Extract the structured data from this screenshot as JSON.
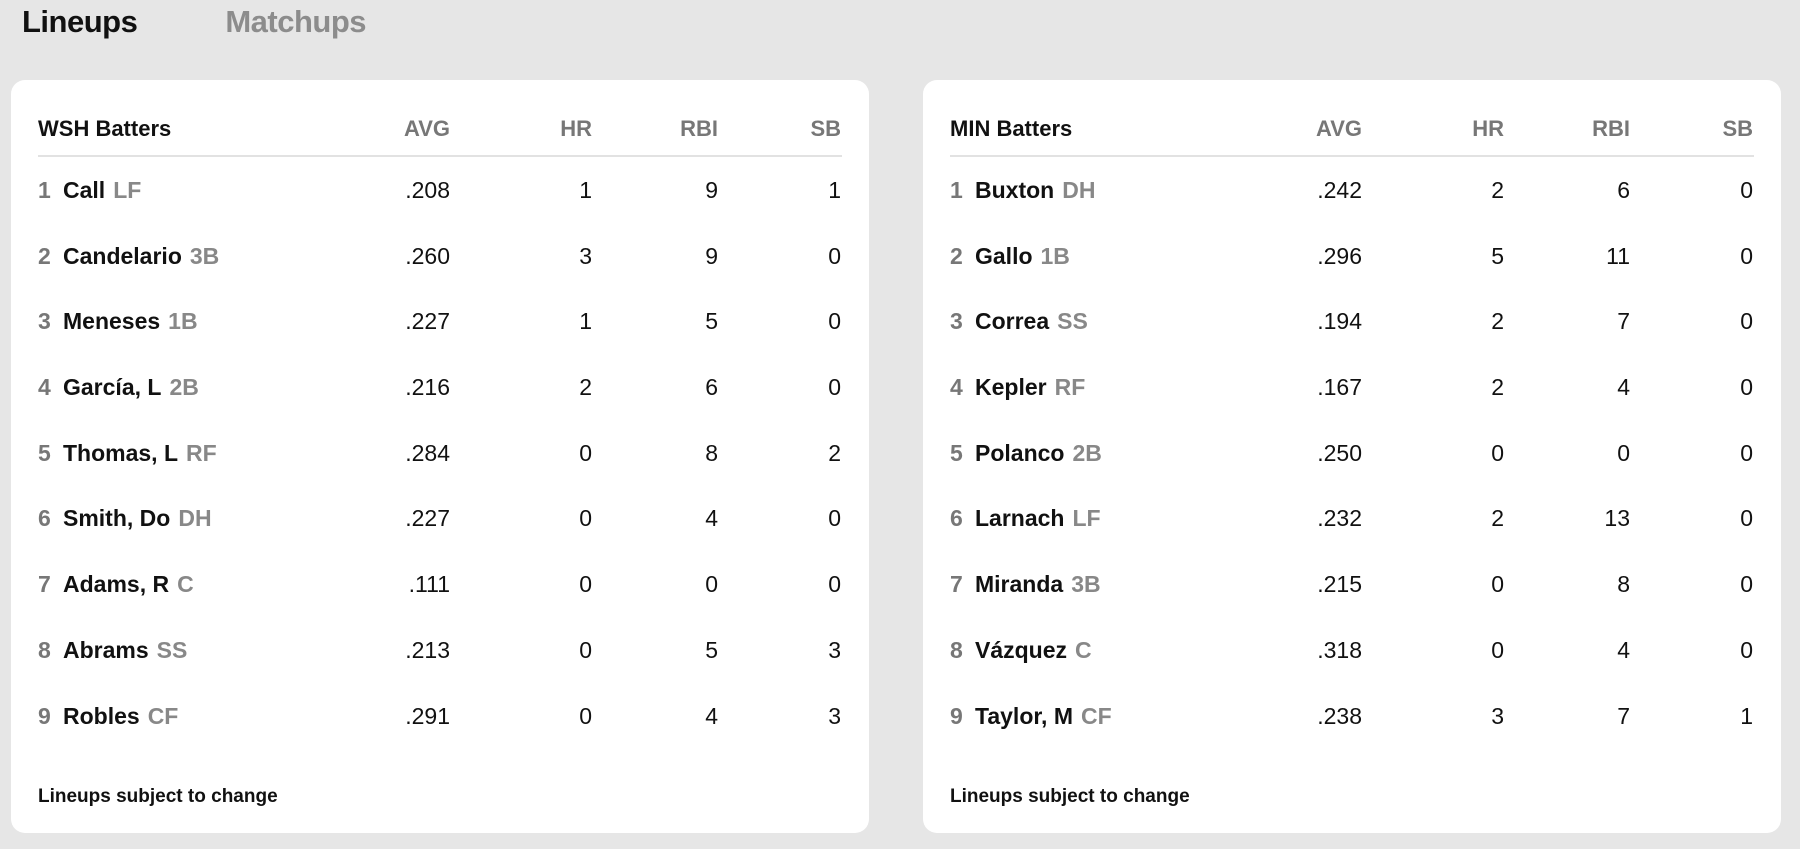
{
  "tabs": [
    {
      "label": "Lineups",
      "active": true
    },
    {
      "label": "Matchups",
      "active": false
    }
  ],
  "columns": [
    "AVG",
    "HR",
    "RBI",
    "SB"
  ],
  "teams": [
    {
      "title": "WSH Batters",
      "footnote": "Lineups subject to change",
      "batters": [
        {
          "order": "1",
          "name": "Call",
          "pos": "LF",
          "avg": ".208",
          "hr": "1",
          "rbi": "9",
          "sb": "1"
        },
        {
          "order": "2",
          "name": "Candelario",
          "pos": "3B",
          "avg": ".260",
          "hr": "3",
          "rbi": "9",
          "sb": "0"
        },
        {
          "order": "3",
          "name": "Meneses",
          "pos": "1B",
          "avg": ".227",
          "hr": "1",
          "rbi": "5",
          "sb": "0"
        },
        {
          "order": "4",
          "name": "García, L",
          "pos": "2B",
          "avg": ".216",
          "hr": "2",
          "rbi": "6",
          "sb": "0"
        },
        {
          "order": "5",
          "name": "Thomas, L",
          "pos": "RF",
          "avg": ".284",
          "hr": "0",
          "rbi": "8",
          "sb": "2"
        },
        {
          "order": "6",
          "name": "Smith, Do",
          "pos": "DH",
          "avg": ".227",
          "hr": "0",
          "rbi": "4",
          "sb": "0"
        },
        {
          "order": "7",
          "name": "Adams, R",
          "pos": "C",
          "avg": ".111",
          "hr": "0",
          "rbi": "0",
          "sb": "0"
        },
        {
          "order": "8",
          "name": "Abrams",
          "pos": "SS",
          "avg": ".213",
          "hr": "0",
          "rbi": "5",
          "sb": "3"
        },
        {
          "order": "9",
          "name": "Robles",
          "pos": "CF",
          "avg": ".291",
          "hr": "0",
          "rbi": "4",
          "sb": "3"
        }
      ]
    },
    {
      "title": "MIN Batters",
      "footnote": "Lineups subject to change",
      "batters": [
        {
          "order": "1",
          "name": "Buxton",
          "pos": "DH",
          "avg": ".242",
          "hr": "2",
          "rbi": "6",
          "sb": "0"
        },
        {
          "order": "2",
          "name": "Gallo",
          "pos": "1B",
          "avg": ".296",
          "hr": "5",
          "rbi": "11",
          "sb": "0"
        },
        {
          "order": "3",
          "name": "Correa",
          "pos": "SS",
          "avg": ".194",
          "hr": "2",
          "rbi": "7",
          "sb": "0"
        },
        {
          "order": "4",
          "name": "Kepler",
          "pos": "RF",
          "avg": ".167",
          "hr": "2",
          "rbi": "4",
          "sb": "0"
        },
        {
          "order": "5",
          "name": "Polanco",
          "pos": "2B",
          "avg": ".250",
          "hr": "0",
          "rbi": "0",
          "sb": "0"
        },
        {
          "order": "6",
          "name": "Larnach",
          "pos": "LF",
          "avg": ".232",
          "hr": "2",
          "rbi": "13",
          "sb": "0"
        },
        {
          "order": "7",
          "name": "Miranda",
          "pos": "3B",
          "avg": ".215",
          "hr": "0",
          "rbi": "8",
          "sb": "0"
        },
        {
          "order": "8",
          "name": "Vázquez",
          "pos": "C",
          "avg": ".318",
          "hr": "0",
          "rbi": "4",
          "sb": "0"
        },
        {
          "order": "9",
          "name": "Taylor, M",
          "pos": "CF",
          "avg": ".238",
          "hr": "3",
          "rbi": "7",
          "sb": "1"
        }
      ]
    }
  ]
}
